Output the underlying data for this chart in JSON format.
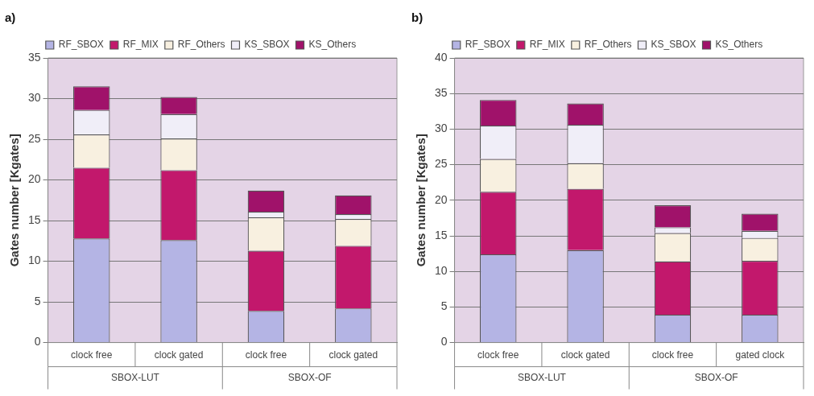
{
  "chart_data": [
    {
      "type": "bar",
      "title": "a)",
      "ylabel": "Gates number [Kgates]",
      "stacked": true,
      "legend": "top",
      "grid": "y",
      "categories": [
        "clock free",
        "clock gated",
        "clock free",
        "clock gated"
      ],
      "annotations": [
        "SBOX-LUT",
        "SBOX-OF"
      ],
      "ylim": [
        0,
        35
      ],
      "yticks": [
        0,
        5,
        10,
        15,
        20,
        25,
        30,
        35
      ],
      "series": [
        {
          "name": "RF_SBOX",
          "color": "#b4b4e4",
          "values": [
            12.8,
            12.6,
            3.9,
            4.2
          ]
        },
        {
          "name": "RF_MIX",
          "color": "#c2186c",
          "values": [
            8.7,
            8.6,
            7.4,
            7.7
          ]
        },
        {
          "name": "RF_Others",
          "color": "#f8f0e0",
          "values": [
            4.1,
            3.9,
            4.1,
            3.3
          ]
        },
        {
          "name": "KS_SBOX",
          "color": "#f0eef8",
          "values": [
            3.0,
            3.0,
            0.7,
            0.6
          ]
        },
        {
          "name": "KS_Others",
          "color": "#a0126a",
          "values": [
            2.9,
            2.1,
            2.6,
            2.3
          ]
        }
      ]
    },
    {
      "type": "bar",
      "title": "b)",
      "ylabel": "Gates number [Kgates]",
      "stacked": true,
      "legend": "top",
      "grid": "y",
      "categories": [
        "clock free",
        "clock gated",
        "clock free",
        "gated clock"
      ],
      "annotations": [
        "SBOX-LUT",
        "SBOX-OF"
      ],
      "ylim": [
        0,
        40
      ],
      "yticks": [
        0,
        5,
        10,
        15,
        20,
        25,
        30,
        35,
        40
      ],
      "series": [
        {
          "name": "RF_SBOX",
          "color": "#b4b4e4",
          "values": [
            12.4,
            13.0,
            3.9,
            3.9
          ]
        },
        {
          "name": "RF_MIX",
          "color": "#c2186c",
          "values": [
            8.8,
            8.6,
            7.5,
            7.6
          ]
        },
        {
          "name": "RF_Others",
          "color": "#f8f0e0",
          "values": [
            4.6,
            3.6,
            4.0,
            3.2
          ]
        },
        {
          "name": "KS_SBOX",
          "color": "#f0eef8",
          "values": [
            4.7,
            5.4,
            0.8,
            1.0
          ]
        },
        {
          "name": "KS_Others",
          "color": "#a0126a",
          "values": [
            3.6,
            3.0,
            3.1,
            2.4
          ]
        }
      ]
    }
  ]
}
